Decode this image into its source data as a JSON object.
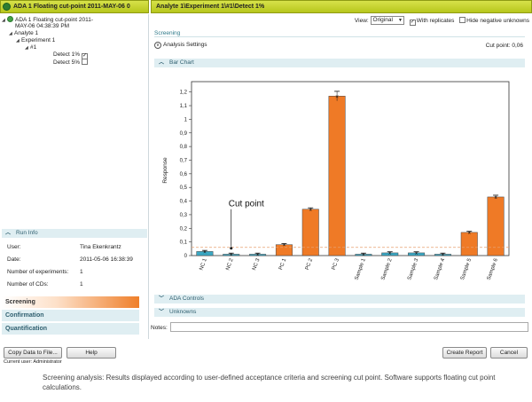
{
  "titlebar": {
    "left": "ADA 1 Floating cut-point 2011-MAY-06 0",
    "right": "Analyte 1\\Experiment 1\\#1\\Detect 1%"
  },
  "tree": {
    "root_line1": "ADA 1 Floating cut-point 2011-",
    "root_line2": "MAY-06 04:38:39 PM",
    "analyte": "Analyte 1",
    "experiment": "Experiment 1",
    "run": "#1",
    "detect1": "Detect 1%",
    "detect1_check": "✓",
    "detect5": "Detect 5%"
  },
  "run_info": {
    "header": "Run Info",
    "rows": [
      {
        "label": "User:",
        "value": "Tina Ekenkrantz"
      },
      {
        "label": "Date:",
        "value": "2011-05-06 16:38:39"
      },
      {
        "label": "Number of experiments:",
        "value": "1"
      },
      {
        "label": "Number of CDs:",
        "value": "1"
      }
    ]
  },
  "nav": {
    "screening": "Screening",
    "confirmation": "Confirmation",
    "quantification": "Quantification"
  },
  "viewbar": {
    "view_label": "View:",
    "view_value": "Original",
    "with_replicates": "With replicates",
    "with_replicates_check": "✓",
    "hide_negative": "Hide negative unknowns"
  },
  "screening": {
    "title": "Screening",
    "analysis_settings": "Analysis Settings",
    "cut_point_label": "Cut point:  0,06",
    "bar_chart": "Bar Chart",
    "ada_controls": "ADA Controls",
    "unknowns": "Unknowns"
  },
  "notes": {
    "label": "Notes:"
  },
  "buttons": {
    "copy": "Copy Data to File...",
    "help": "Help",
    "create_report": "Create Report",
    "cancel": "Cancel"
  },
  "current_user": "Current user: Administrator",
  "caption": "Screening analysis: Results displayed according to user-defined acceptance criteria and screening cut point. Software supports floating cut point calculations.",
  "chart_data": {
    "type": "bar",
    "ylabel": "Response",
    "ylim": [
      0,
      1.25
    ],
    "yticks": [
      "0",
      "0,1",
      "0,2",
      "0,3",
      "0,4",
      "0,5",
      "0,6",
      "0,7",
      "0,8",
      "0,9",
      "1",
      "1,1",
      "1,2"
    ],
    "cut_point": 0.06,
    "annotation": "Cut point",
    "categories": [
      "NC 1",
      "NC 2",
      "NC 3",
      "PC 1",
      "PC 2",
      "PC 3",
      "Sample 1",
      "Sample 2",
      "Sample 3",
      "Sample 4",
      "Sample 5",
      "Sample 6"
    ],
    "values": [
      0.03,
      0.01,
      0.01,
      0.08,
      0.34,
      1.17,
      0.01,
      0.02,
      0.02,
      0.01,
      0.17,
      0.43
    ],
    "colors": {
      "negative": "#3aa8c4",
      "positive": "#ef7a26",
      "cutline": "#e8a070"
    }
  }
}
